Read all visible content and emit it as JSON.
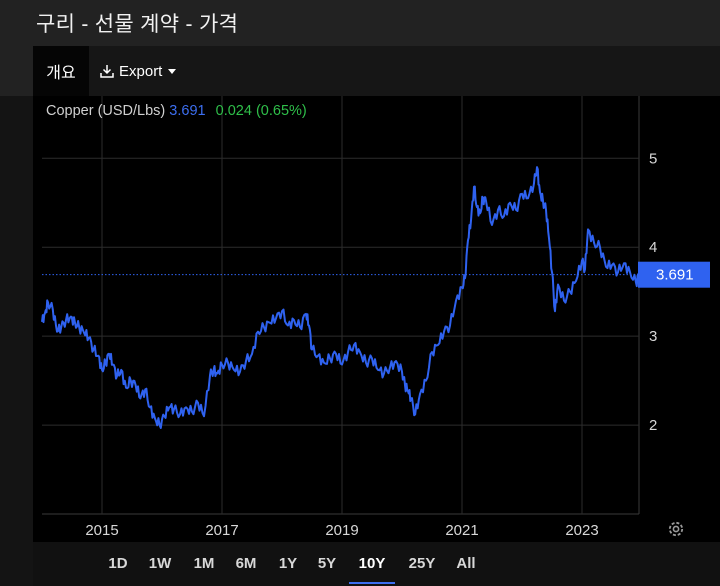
{
  "page": {
    "title": "구리 - 선물 계약 - 가격"
  },
  "toolbar": {
    "tab_overview": "개요",
    "export_label": "Export"
  },
  "legend": {
    "name": "Copper (USD/Lbs)",
    "price": "3.691",
    "change": "0.024",
    "change_pct": "(0.65%)"
  },
  "price_label": "3.691",
  "range_buttons": [
    "1D",
    "1W",
    "1M",
    "6M",
    "1Y",
    "5Y",
    "10Y",
    "25Y",
    "All"
  ],
  "active_range": "10Y",
  "colors": {
    "line": "#2f62f0",
    "up": "#2fbf4a",
    "accent": "#3c6ef0"
  },
  "chart_data": {
    "type": "line",
    "title": "",
    "xlabel": "",
    "ylabel": "",
    "x_ticks": [
      "2015",
      "2017",
      "2019",
      "2021",
      "2023"
    ],
    "y_ticks": [
      2,
      3,
      4,
      5
    ],
    "ylim": [
      1.0,
      5.7
    ],
    "xlim": [
      2014.0,
      2023.95
    ],
    "grid": true,
    "current_value": 3.691,
    "series": [
      {
        "name": "Copper (USD/Lbs)",
        "x": [
          2014.0,
          2014.05,
          2014.1,
          2014.18,
          2014.25,
          2014.32,
          2014.4,
          2014.48,
          2014.55,
          2014.62,
          2014.7,
          2014.78,
          2014.86,
          2014.94,
          2015.0,
          2015.06,
          2015.12,
          2015.18,
          2015.25,
          2015.32,
          2015.4,
          2015.48,
          2015.56,
          2015.64,
          2015.72,
          2015.8,
          2015.88,
          2015.96,
          2016.04,
          2016.12,
          2016.2,
          2016.3,
          2016.4,
          2016.5,
          2016.6,
          2016.7,
          2016.8,
          2016.86,
          2016.92,
          2017.0,
          2017.1,
          2017.2,
          2017.3,
          2017.4,
          2017.5,
          2017.6,
          2017.7,
          2017.8,
          2017.9,
          2018.0,
          2018.1,
          2018.2,
          2018.3,
          2018.4,
          2018.45,
          2018.5,
          2018.6,
          2018.7,
          2018.8,
          2018.9,
          2019.0,
          2019.1,
          2019.2,
          2019.3,
          2019.4,
          2019.5,
          2019.6,
          2019.7,
          2019.8,
          2019.9,
          2020.0,
          2020.05,
          2020.1,
          2020.15,
          2020.22,
          2020.3,
          2020.4,
          2020.5,
          2020.6,
          2020.7,
          2020.8,
          2020.9,
          2021.0,
          2021.05,
          2021.1,
          2021.15,
          2021.2,
          2021.25,
          2021.3,
          2021.35,
          2021.4,
          2021.5,
          2021.6,
          2021.7,
          2021.8,
          2021.9,
          2022.0,
          2022.1,
          2022.2,
          2022.25,
          2022.3,
          2022.35,
          2022.4,
          2022.45,
          2022.5,
          2022.55,
          2022.6,
          2022.7,
          2022.8,
          2022.9,
          2023.0,
          2023.05,
          2023.1,
          2023.2,
          2023.3,
          2023.4,
          2023.5,
          2023.6,
          2023.7,
          2023.8,
          2023.9,
          2023.95
        ],
        "y": [
          3.16,
          3.26,
          3.38,
          3.3,
          3.05,
          3.1,
          3.18,
          3.22,
          3.15,
          3.1,
          3.04,
          2.98,
          2.85,
          2.78,
          2.62,
          2.7,
          2.8,
          2.68,
          2.55,
          2.62,
          2.42,
          2.5,
          2.45,
          2.3,
          2.4,
          2.2,
          2.08,
          2.0,
          2.1,
          2.2,
          2.18,
          2.12,
          2.2,
          2.15,
          2.25,
          2.1,
          2.56,
          2.62,
          2.58,
          2.68,
          2.7,
          2.62,
          2.6,
          2.72,
          2.8,
          3.05,
          3.1,
          3.15,
          3.2,
          3.28,
          3.12,
          3.18,
          3.1,
          3.25,
          3.12,
          2.85,
          2.78,
          2.7,
          2.75,
          2.8,
          2.68,
          2.82,
          2.9,
          2.82,
          2.7,
          2.75,
          2.62,
          2.58,
          2.65,
          2.72,
          2.6,
          2.45,
          2.38,
          2.3,
          2.12,
          2.35,
          2.5,
          2.82,
          2.9,
          3.05,
          3.12,
          3.4,
          3.55,
          3.65,
          4.08,
          4.3,
          4.68,
          4.45,
          4.38,
          4.55,
          4.52,
          4.25,
          4.42,
          4.35,
          4.5,
          4.42,
          4.6,
          4.55,
          4.72,
          4.9,
          4.62,
          4.52,
          4.42,
          4.1,
          3.72,
          3.28,
          3.58,
          3.4,
          3.5,
          3.62,
          3.85,
          3.75,
          4.2,
          4.05,
          4.0,
          3.78,
          3.8,
          3.72,
          3.82,
          3.72,
          3.6,
          3.691
        ]
      }
    ]
  }
}
